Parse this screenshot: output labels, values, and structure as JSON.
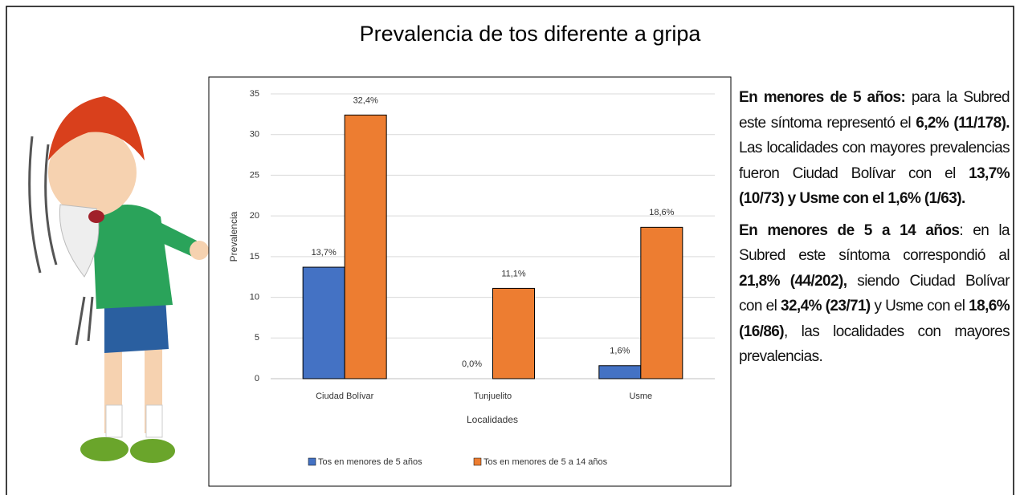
{
  "chart_data": {
    "type": "bar",
    "title": "Prevalencia de tos diferente a gripa",
    "categories": [
      "Ciudad Bolívar",
      "Tunjuelito",
      "Usme"
    ],
    "series": [
      {
        "name": "Tos en  menores de 5 años",
        "color": "#4472c4",
        "values": [
          13.7,
          0,
          1.6
        ],
        "value_labels": [
          "13,7%",
          "0,0%",
          "1,6%"
        ]
      },
      {
        "name": "Tos en menores de 5 a 14 años",
        "color": "#ed7d31",
        "values": [
          32.4,
          11.1,
          18.6
        ],
        "value_labels": [
          "32,4%",
          "11,1%",
          "18,6%"
        ]
      }
    ],
    "ylabel": "Prevalencia",
    "xlabel": "Localidades",
    "ylim": [
      0,
      35
    ],
    "yticks": [
      0,
      5,
      10,
      15,
      20,
      25,
      30,
      35
    ],
    "grid": true,
    "legend": "bottom"
  },
  "paragraphs": [
    {
      "runs": [
        {
          "text": "En menores de 5 años:",
          "bold": true
        },
        {
          "text": " para la Subred este síntoma representó el ",
          "bold": false
        },
        {
          "text": "6,2% (11/178).",
          "bold": true
        },
        {
          "text": " Las localidades con mayores prevalencias fueron Ciudad Bolívar con el ",
          "bold": false
        },
        {
          "text": "13,7% (10/73) y Usme con el 1,6% (1/63).",
          "bold": true
        }
      ]
    },
    {
      "runs": [
        {
          "text": "En menores de 5 a 14 años",
          "bold": true
        },
        {
          "text": ": en la Subred este síntoma correspondió al ",
          "bold": false
        },
        {
          "text": "21,8% (44/202),",
          "bold": true
        },
        {
          "text": " siendo Ciudad Bolívar con el ",
          "bold": false
        },
        {
          "text": "32,4% (23/71)",
          "bold": true
        },
        {
          "text": " y Usme con el ",
          "bold": false
        },
        {
          "text": "18,6% (16/86)",
          "bold": true
        },
        {
          "text": ", las localidades con mayores prevalencias.",
          "bold": false
        }
      ]
    }
  ]
}
